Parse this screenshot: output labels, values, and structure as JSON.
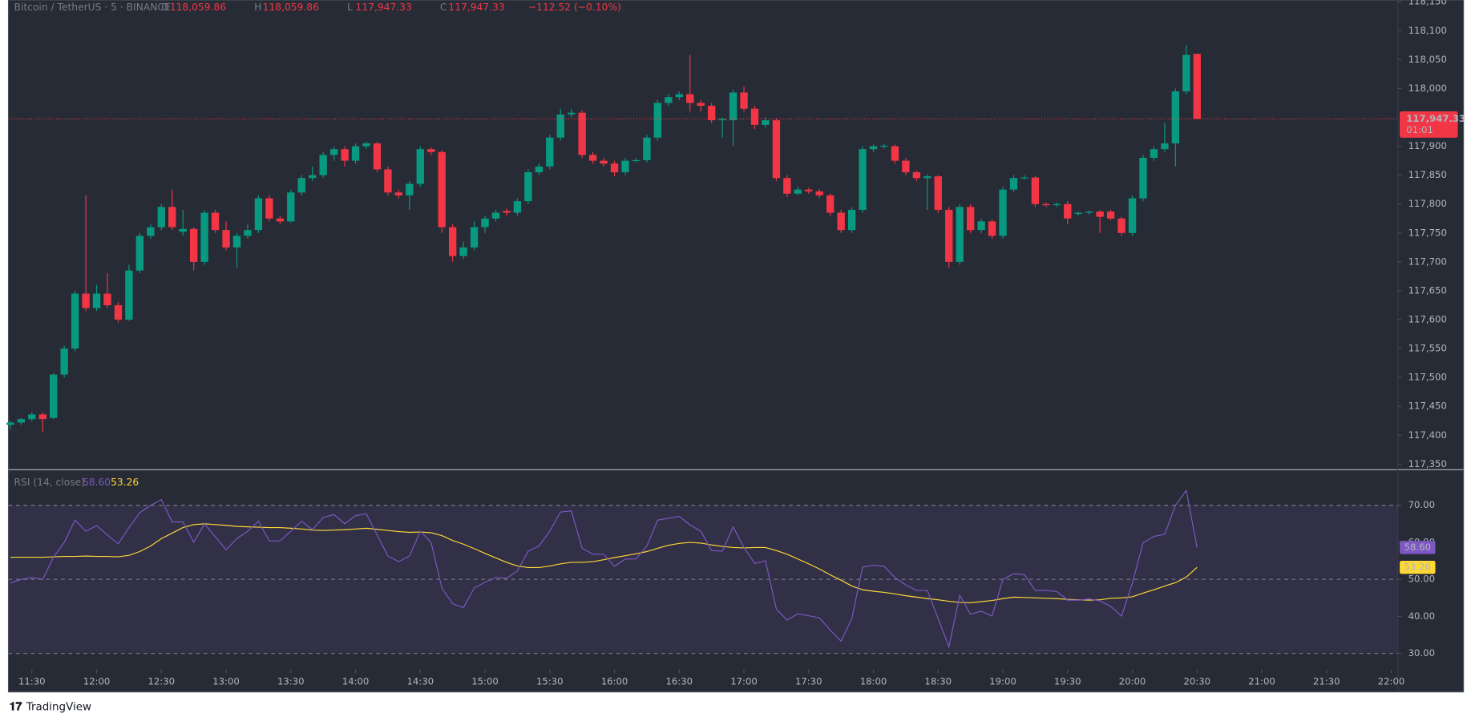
{
  "header": {
    "symbol": "Bitcoin / TetherUS · 5 · BINANCE",
    "letters": [
      "O",
      "H",
      "L",
      "C"
    ],
    "values": [
      "118,059.86",
      "118,059.86",
      "117,947.33",
      "117,947.33"
    ],
    "change": "−112.52 (−0.10%)"
  },
  "chart_data": {
    "type": "candlestick",
    "up_color": "#089981",
    "down_color": "#f23645",
    "candles": [
      [
        117418,
        117425,
        117410,
        117422
      ],
      [
        117422,
        117430,
        117418,
        117428
      ],
      [
        117428,
        117440,
        117424,
        117436
      ],
      [
        117436,
        117440,
        117405,
        117428
      ],
      [
        117430,
        117508,
        117428,
        117505
      ],
      [
        117505,
        117555,
        117500,
        117550
      ],
      [
        117550,
        117650,
        117545,
        117645
      ],
      [
        117645,
        117815,
        117615,
        117620
      ],
      [
        117620,
        117660,
        117615,
        117645
      ],
      [
        117645,
        117680,
        117620,
        117625
      ],
      [
        117625,
        117630,
        117595,
        117600
      ],
      [
        117600,
        117695,
        117598,
        117685
      ],
      [
        117685,
        117750,
        117680,
        117745
      ],
      [
        117745,
        117765,
        117740,
        117760
      ],
      [
        117760,
        117800,
        117755,
        117795
      ],
      [
        117795,
        117825,
        117755,
        117760
      ],
      [
        117752,
        117790,
        117745,
        117757
      ],
      [
        117757,
        117760,
        117685,
        117700
      ],
      [
        117700,
        117790,
        117695,
        117785
      ],
      [
        117785,
        117790,
        117750,
        117755
      ],
      [
        117755,
        117770,
        117720,
        117725
      ],
      [
        117725,
        117750,
        117690,
        117745
      ],
      [
        117745,
        117765,
        117740,
        117755
      ],
      [
        117755,
        117815,
        117750,
        117810
      ],
      [
        117810,
        117815,
        117770,
        117775
      ],
      [
        117775,
        117780,
        117765,
        117770
      ],
      [
        117770,
        117825,
        117768,
        117820
      ],
      [
        117820,
        117850,
        117815,
        117845
      ],
      [
        117845,
        117865,
        117840,
        117850
      ],
      [
        117850,
        117890,
        117845,
        117885
      ],
      [
        117885,
        117900,
        117875,
        117895
      ],
      [
        117895,
        117900,
        117865,
        117875
      ],
      [
        117875,
        117905,
        117870,
        117900
      ],
      [
        117900,
        117908,
        117895,
        117905
      ],
      [
        117905,
        117908,
        117855,
        117860
      ],
      [
        117860,
        117865,
        117815,
        117820
      ],
      [
        117820,
        117825,
        117810,
        117815
      ],
      [
        117815,
        117840,
        117790,
        117835
      ],
      [
        117835,
        117900,
        117830,
        117895
      ],
      [
        117895,
        117898,
        117885,
        117890
      ],
      [
        117890,
        117893,
        117750,
        117760
      ],
      [
        117760,
        117765,
        117700,
        117710
      ],
      [
        117710,
        117735,
        117705,
        117725
      ],
      [
        117725,
        117770,
        117720,
        117760
      ],
      [
        117760,
        117780,
        117750,
        117775
      ],
      [
        117775,
        117790,
        117770,
        117785
      ],
      [
        117788,
        117792,
        117780,
        117785
      ],
      [
        117785,
        117810,
        117780,
        117805
      ],
      [
        117805,
        117860,
        117800,
        117855
      ],
      [
        117855,
        117870,
        117850,
        117865
      ],
      [
        117865,
        117920,
        117860,
        117915
      ],
      [
        117915,
        117965,
        117910,
        117955
      ],
      [
        117955,
        117965,
        117950,
        117958
      ],
      [
        117958,
        117962,
        117880,
        117885
      ],
      [
        117885,
        117890,
        117870,
        117875
      ],
      [
        117875,
        117880,
        117865,
        117870
      ],
      [
        117870,
        117875,
        117848,
        117855
      ],
      [
        117855,
        117880,
        117850,
        117875
      ],
      [
        117875,
        117880,
        117872,
        117876
      ],
      [
        117876,
        117920,
        117872,
        117915
      ],
      [
        117915,
        117980,
        117910,
        117975
      ],
      [
        117975,
        117990,
        117970,
        117985
      ],
      [
        117985,
        117995,
        117980,
        117990
      ],
      [
        117990,
        118058,
        117960,
        117975
      ],
      [
        117975,
        117980,
        117960,
        117970
      ],
      [
        117970,
        117975,
        117940,
        117945
      ],
      [
        117945,
        117950,
        117915,
        117947
      ],
      [
        117945,
        117998,
        117900,
        117993
      ],
      [
        117993,
        118003,
        117960,
        117965
      ],
      [
        117965,
        117970,
        117930,
        117937
      ],
      [
        117937,
        117950,
        117932,
        117945
      ],
      [
        117945,
        117948,
        117840,
        117845
      ],
      [
        117845,
        117850,
        117812,
        117818
      ],
      [
        117818,
        117830,
        117815,
        117825
      ],
      [
        117825,
        117828,
        117818,
        117822
      ],
      [
        117822,
        117826,
        117810,
        117815
      ],
      [
        117815,
        117818,
        117780,
        117785
      ],
      [
        117785,
        117790,
        117750,
        117755
      ],
      [
        117755,
        117795,
        117750,
        117790
      ],
      [
        117790,
        117900,
        117785,
        117895
      ],
      [
        117895,
        117903,
        117890,
        117900
      ],
      [
        117900,
        117904,
        117896,
        117901
      ],
      [
        117900,
        117903,
        117870,
        117875
      ],
      [
        117875,
        117880,
        117850,
        117855
      ],
      [
        117855,
        117858,
        117840,
        117845
      ],
      [
        117845,
        117852,
        117790,
        117848
      ],
      [
        117848,
        117850,
        117785,
        117790
      ],
      [
        117790,
        117795,
        117690,
        117700
      ],
      [
        117700,
        117800,
        117695,
        117795
      ],
      [
        117795,
        117800,
        117750,
        117755
      ],
      [
        117755,
        117775,
        117750,
        117770
      ],
      [
        117770,
        117773,
        117740,
        117745
      ],
      [
        117745,
        117830,
        117740,
        117825
      ],
      [
        117825,
        117850,
        117820,
        117845
      ],
      [
        117845,
        117850,
        117842,
        117846
      ],
      [
        117846,
        117848,
        117795,
        117800
      ],
      [
        117800,
        117803,
        117795,
        117798
      ],
      [
        117798,
        117803,
        117795,
        117800
      ],
      [
        117800,
        117805,
        117765,
        117775
      ],
      [
        117783,
        117787,
        117780,
        117785
      ],
      [
        117785,
        117789,
        117782,
        117787
      ],
      [
        117787,
        117790,
        117750,
        117778
      ],
      [
        117787,
        117790,
        117772,
        117775
      ],
      [
        117775,
        117778,
        117745,
        117750
      ],
      [
        117750,
        117815,
        117745,
        117810
      ],
      [
        117810,
        117885,
        117805,
        117880
      ],
      [
        117880,
        117900,
        117875,
        117895
      ],
      [
        117895,
        117940,
        117890,
        117905
      ],
      [
        117905,
        118000,
        117865,
        117995
      ],
      [
        117995,
        118075,
        117990,
        118058
      ],
      [
        118059.86,
        118059.86,
        117947.33,
        117947.33
      ]
    ],
    "ylim": [
      117342,
      118153
    ],
    "yticks": [
      {
        "value": 118150,
        "label": "118,150"
      },
      {
        "value": 118100,
        "label": "118,100"
      },
      {
        "value": 118050,
        "label": "118,050"
      },
      {
        "value": 118000,
        "label": "118,000"
      },
      {
        "value": 117900,
        "label": "117,900"
      },
      {
        "value": 117850,
        "label": "117,850"
      },
      {
        "value": 117800,
        "label": "117,800"
      },
      {
        "value": 117750,
        "label": "117,750"
      },
      {
        "value": 117700,
        "label": "117,700"
      },
      {
        "value": 117650,
        "label": "117,650"
      },
      {
        "value": 117600,
        "label": "117,600"
      },
      {
        "value": 117550,
        "label": "117,550"
      },
      {
        "value": 117500,
        "label": "117,500"
      },
      {
        "value": 117450,
        "label": "117,450"
      },
      {
        "value": 117400,
        "label": "117,400"
      },
      {
        "value": 117350,
        "label": "117,350"
      }
    ],
    "last_price_label": "117,947.33",
    "countdown": "01:01",
    "xticks": [
      "11:30",
      "12:00",
      "12:30",
      "13:00",
      "13:30",
      "14:00",
      "14:30",
      "15:00",
      "15:30",
      "16:00",
      "16:30",
      "17:00",
      "17:30",
      "18:00",
      "18:30",
      "19:00",
      "19:30",
      "20:00",
      "20:30",
      "21:00",
      "21:30",
      "22:00"
    ]
  },
  "rsi_panel": {
    "type": "line",
    "title": "RSI (14, close)",
    "ylim": [
      26.2,
      79.1
    ],
    "yticks": [
      {
        "value": 70,
        "label": "70.00"
      },
      {
        "value": 60,
        "label": "60.00"
      },
      {
        "value": 50,
        "label": "50.00"
      },
      {
        "value": 40,
        "label": "40.00"
      },
      {
        "value": 30,
        "label": "30.00"
      }
    ],
    "bands": [
      70,
      50,
      30
    ],
    "band_color": "#7e57c2",
    "series": [
      {
        "name": "RSI",
        "color": "#7e57c2",
        "value_label": "58.60",
        "values": [
          49,
          50,
          50.5,
          50,
          56,
          60,
          66,
          63,
          64.5,
          62,
          59.6,
          64,
          68,
          70,
          71.5,
          65.5,
          65.5,
          60,
          65,
          61.5,
          58,
          61,
          63,
          65.7,
          60.4,
          60.4,
          63,
          65.7,
          63.4,
          66.7,
          67.5,
          65,
          67.2,
          67.7,
          62,
          56.3,
          54.8,
          56.3,
          63,
          60,
          47.7,
          43.4,
          42.4,
          47.7,
          49.2,
          50.5,
          50.3,
          52.3,
          57.6,
          59,
          63,
          68.2,
          68.5,
          58.4,
          56.8,
          56.8,
          53.5,
          55.5,
          55.5,
          59,
          66,
          66.5,
          67,
          64.7,
          63,
          57.8,
          57.6,
          64.2,
          58.6,
          54.3,
          55,
          42,
          39,
          40.7,
          40.2,
          39.6,
          36.3,
          33.3,
          39.4,
          53.3,
          53.8,
          53.5,
          50.5,
          48.5,
          47,
          47,
          39.4,
          31.8,
          45.7,
          40.6,
          41.4,
          40.1,
          50,
          51.5,
          51.3,
          47,
          47,
          46.7,
          44.4,
          44.4,
          44.7,
          44.2,
          42.7,
          40.1,
          49,
          59.9,
          61.6,
          62.2,
          70,
          74,
          58.6
        ]
      },
      {
        "name": "RSI-based MA",
        "color": "#fdd835",
        "value_label": "53.26",
        "values": [
          56,
          56,
          56,
          56,
          56.1,
          56.2,
          56.2,
          56.3,
          56.2,
          56.2,
          56.1,
          56.5,
          57.5,
          59,
          61,
          62.5,
          64,
          64.8,
          65,
          64.8,
          64.6,
          64.3,
          64.2,
          64.1,
          64,
          64,
          63.8,
          63.6,
          63.3,
          63.2,
          63.3,
          63.4,
          63.6,
          63.8,
          63.5,
          63.2,
          62.9,
          62.7,
          62.8,
          62.6,
          61.8,
          60.5,
          59.5,
          58.3,
          57,
          55.8,
          54.6,
          53.6,
          53.2,
          53.2,
          53.6,
          54.2,
          54.6,
          54.6,
          54.8,
          55.3,
          55.9,
          56.4,
          56.9,
          57.5,
          58.4,
          59.2,
          59.7,
          60,
          59.8,
          59.3,
          58.9,
          58.6,
          58.5,
          58.6,
          58.6,
          57.8,
          56.8,
          55.5,
          54.2,
          52.8,
          51.2,
          49.8,
          48.2,
          47.2,
          46.8,
          46.5,
          46.1,
          45.6,
          45.2,
          44.8,
          44.5,
          44.1,
          43.8,
          43.7,
          44,
          44.3,
          44.8,
          45.2,
          45.1,
          45,
          44.9,
          44.8,
          44.6,
          44.5,
          44.4,
          44.5,
          44.9,
          45,
          45.3,
          46.3,
          47.2,
          48.2,
          49.1,
          50.6,
          53.26
        ]
      }
    ]
  },
  "footer": {
    "brand": "TradingView"
  }
}
